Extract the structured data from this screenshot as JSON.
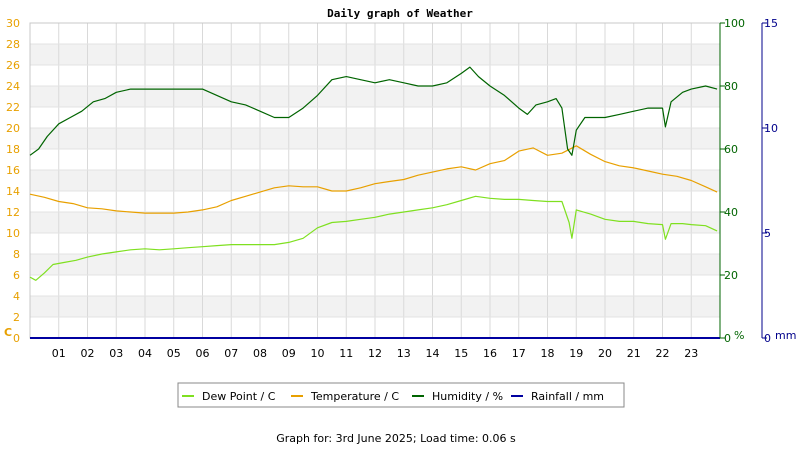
{
  "chart_data": {
    "type": "line",
    "title": "Daily graph of Weather",
    "footer": "Graph for: 3rd June 2025; Load time: 0.06 s",
    "x": {
      "ticks": [
        "01",
        "02",
        "03",
        "04",
        "05",
        "06",
        "07",
        "08",
        "09",
        "10",
        "11",
        "12",
        "13",
        "14",
        "15",
        "16",
        "17",
        "18",
        "19",
        "20",
        "21",
        "22",
        "23"
      ],
      "range": [
        0,
        24
      ]
    },
    "axes": {
      "left": {
        "label": "C",
        "color": "#e8a000",
        "range": [
          0,
          30
        ],
        "ticks": [
          0,
          2,
          4,
          6,
          8,
          10,
          12,
          14,
          16,
          18,
          20,
          22,
          24,
          26,
          28,
          30
        ]
      },
      "right1": {
        "label": "%",
        "color": "#006400",
        "range": [
          0,
          100
        ],
        "ticks": [
          0,
          20,
          40,
          60,
          80,
          100
        ]
      },
      "right2": {
        "label": "mm",
        "color": "#00008b",
        "range": [
          0,
          15
        ],
        "ticks": [
          0,
          5,
          10,
          15
        ]
      }
    },
    "grid": true,
    "legend_position": "bottom",
    "series": [
      {
        "name": "Dew Point / C",
        "axis": "left",
        "color": "#7fe020",
        "points": [
          [
            0,
            5.8
          ],
          [
            0.2,
            5.5
          ],
          [
            0.5,
            6.2
          ],
          [
            0.8,
            7.0
          ],
          [
            1.2,
            7.2
          ],
          [
            1.6,
            7.4
          ],
          [
            2.0,
            7.7
          ],
          [
            2.5,
            8.0
          ],
          [
            3.0,
            8.2
          ],
          [
            3.5,
            8.4
          ],
          [
            4.0,
            8.5
          ],
          [
            4.5,
            8.4
          ],
          [
            5.0,
            8.5
          ],
          [
            5.5,
            8.6
          ],
          [
            6.0,
            8.7
          ],
          [
            6.5,
            8.8
          ],
          [
            7.0,
            8.9
          ],
          [
            7.5,
            8.9
          ],
          [
            8.0,
            8.9
          ],
          [
            8.5,
            8.9
          ],
          [
            9.0,
            9.1
          ],
          [
            9.5,
            9.5
          ],
          [
            10.0,
            10.5
          ],
          [
            10.5,
            11.0
          ],
          [
            11.0,
            11.1
          ],
          [
            11.5,
            11.3
          ],
          [
            12.0,
            11.5
          ],
          [
            12.5,
            11.8
          ],
          [
            13.0,
            12.0
          ],
          [
            13.5,
            12.2
          ],
          [
            14.0,
            12.4
          ],
          [
            14.5,
            12.7
          ],
          [
            15.0,
            13.1
          ],
          [
            15.5,
            13.5
          ],
          [
            16.0,
            13.3
          ],
          [
            16.5,
            13.2
          ],
          [
            17.0,
            13.2
          ],
          [
            17.5,
            13.1
          ],
          [
            18.0,
            13.0
          ],
          [
            18.5,
            13.0
          ],
          [
            18.75,
            11.0
          ],
          [
            18.85,
            9.5
          ],
          [
            19.0,
            12.2
          ],
          [
            19.5,
            11.8
          ],
          [
            20.0,
            11.3
          ],
          [
            20.5,
            11.1
          ],
          [
            21.0,
            11.1
          ],
          [
            21.5,
            10.9
          ],
          [
            22.0,
            10.8
          ],
          [
            22.1,
            9.4
          ],
          [
            22.3,
            10.9
          ],
          [
            22.7,
            10.9
          ],
          [
            23.0,
            10.8
          ],
          [
            23.5,
            10.7
          ],
          [
            23.9,
            10.2
          ]
        ]
      },
      {
        "name": "Temperature / C",
        "axis": "left",
        "color": "#e8a000",
        "points": [
          [
            0,
            13.7
          ],
          [
            0.5,
            13.4
          ],
          [
            1.0,
            13.0
          ],
          [
            1.5,
            12.8
          ],
          [
            2.0,
            12.4
          ],
          [
            2.5,
            12.3
          ],
          [
            3.0,
            12.1
          ],
          [
            3.5,
            12.0
          ],
          [
            4.0,
            11.9
          ],
          [
            4.5,
            11.9
          ],
          [
            5.0,
            11.9
          ],
          [
            5.5,
            12.0
          ],
          [
            6.0,
            12.2
          ],
          [
            6.5,
            12.5
          ],
          [
            7.0,
            13.1
          ],
          [
            7.5,
            13.5
          ],
          [
            8.0,
            13.9
          ],
          [
            8.5,
            14.3
          ],
          [
            9.0,
            14.5
          ],
          [
            9.5,
            14.4
          ],
          [
            10.0,
            14.4
          ],
          [
            10.5,
            14.0
          ],
          [
            11.0,
            14.0
          ],
          [
            11.5,
            14.3
          ],
          [
            12.0,
            14.7
          ],
          [
            12.5,
            14.9
          ],
          [
            13.0,
            15.1
          ],
          [
            13.5,
            15.5
          ],
          [
            14.0,
            15.8
          ],
          [
            14.5,
            16.1
          ],
          [
            15.0,
            16.3
          ],
          [
            15.5,
            16.0
          ],
          [
            16.0,
            16.6
          ],
          [
            16.5,
            16.9
          ],
          [
            17.0,
            17.8
          ],
          [
            17.5,
            18.1
          ],
          [
            18.0,
            17.4
          ],
          [
            18.5,
            17.6
          ],
          [
            19.0,
            18.3
          ],
          [
            19.5,
            17.5
          ],
          [
            20.0,
            16.8
          ],
          [
            20.5,
            16.4
          ],
          [
            21.0,
            16.2
          ],
          [
            21.5,
            15.9
          ],
          [
            22.0,
            15.6
          ],
          [
            22.5,
            15.4
          ],
          [
            23.0,
            15.0
          ],
          [
            23.5,
            14.4
          ],
          [
            23.9,
            13.9
          ]
        ]
      },
      {
        "name": "Humidity / %",
        "axis": "right1",
        "color": "#006400",
        "points": [
          [
            0,
            58
          ],
          [
            0.3,
            60
          ],
          [
            0.6,
            64
          ],
          [
            1.0,
            68
          ],
          [
            1.4,
            70
          ],
          [
            1.8,
            72
          ],
          [
            2.2,
            75
          ],
          [
            2.6,
            76
          ],
          [
            3.0,
            78
          ],
          [
            3.5,
            79
          ],
          [
            4.0,
            79
          ],
          [
            4.5,
            79
          ],
          [
            5.0,
            79
          ],
          [
            5.5,
            79
          ],
          [
            6.0,
            79
          ],
          [
            6.5,
            77
          ],
          [
            7.0,
            75
          ],
          [
            7.5,
            74
          ],
          [
            8.0,
            72
          ],
          [
            8.5,
            70
          ],
          [
            9.0,
            70
          ],
          [
            9.5,
            73
          ],
          [
            10.0,
            77
          ],
          [
            10.5,
            82
          ],
          [
            11.0,
            83
          ],
          [
            11.5,
            82
          ],
          [
            12.0,
            81
          ],
          [
            12.5,
            82
          ],
          [
            13.0,
            81
          ],
          [
            13.5,
            80
          ],
          [
            14.0,
            80
          ],
          [
            14.5,
            81
          ],
          [
            15.0,
            84
          ],
          [
            15.3,
            86
          ],
          [
            15.6,
            83
          ],
          [
            16.0,
            80
          ],
          [
            16.5,
            77
          ],
          [
            17.0,
            73
          ],
          [
            17.3,
            71
          ],
          [
            17.6,
            74
          ],
          [
            18.0,
            75
          ],
          [
            18.3,
            76
          ],
          [
            18.5,
            73
          ],
          [
            18.7,
            60
          ],
          [
            18.85,
            58
          ],
          [
            19.0,
            66
          ],
          [
            19.3,
            70
          ],
          [
            19.6,
            70
          ],
          [
            20.0,
            70
          ],
          [
            20.5,
            71
          ],
          [
            21.0,
            72
          ],
          [
            21.5,
            73
          ],
          [
            22.0,
            73
          ],
          [
            22.1,
            67
          ],
          [
            22.3,
            75
          ],
          [
            22.7,
            78
          ],
          [
            23.0,
            79
          ],
          [
            23.5,
            80
          ],
          [
            23.9,
            79
          ]
        ]
      },
      {
        "name": "Rainfall / mm",
        "axis": "right2",
        "color": "#0000a0",
        "points": [
          [
            0,
            0
          ],
          [
            24,
            0
          ]
        ]
      }
    ]
  }
}
